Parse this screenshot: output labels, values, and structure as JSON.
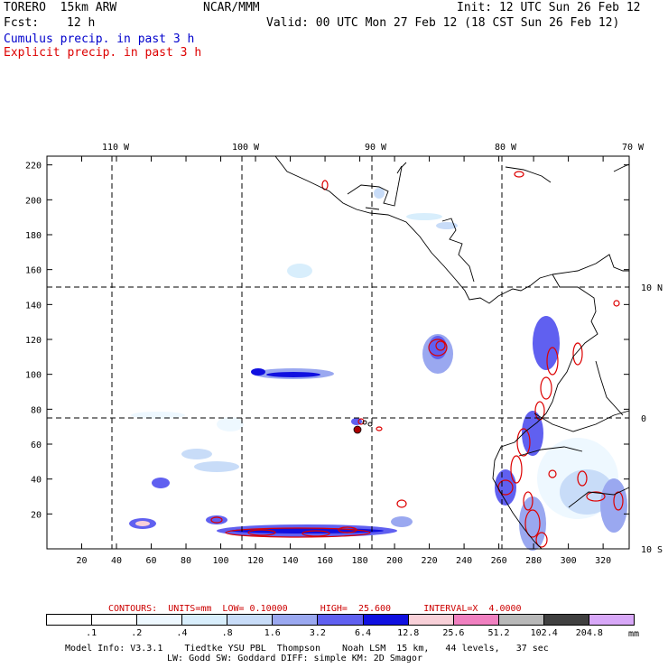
{
  "header": {
    "model": "TORERO  15km ARW",
    "org": "NCAR/MMM",
    "init": "Init: 12 UTC Sun 26 Feb 12",
    "fcst_label": "Fcst:",
    "fcst_value": "12 h",
    "valid": "Valid: 00 UTC Mon 27 Feb 12 (18 CST Sun 26 Feb 12)",
    "field1": "Cumulus precip. in past 3 h",
    "field2": "Explicit precip. in past 3 h",
    "field1_color": "#0000cc",
    "field2_color": "#dd0000"
  },
  "axes": {
    "x_ticks": [
      "20",
      "40",
      "60",
      "80",
      "100",
      "120",
      "140",
      "160",
      "180",
      "200",
      "220",
      "240",
      "260",
      "280",
      "300",
      "320"
    ],
    "y_ticks": [
      "20",
      "40",
      "60",
      "80",
      "100",
      "120",
      "140",
      "160",
      "180",
      "200",
      "220"
    ],
    "lon_labels": [
      "110 W",
      "100 W",
      "90 W",
      "80 W",
      "70 W"
    ],
    "lat_labels": [
      "10 N",
      "0",
      "10 S"
    ]
  },
  "contour_info": {
    "text": "CONTOURS:  UNITS=mm  LOW= 0.10000      HIGH=  25.600      INTERVAL=X  4.0000",
    "color": "#cc0000"
  },
  "colorbar": {
    "colors": [
      "#ffffff",
      "#ffffff",
      "#eef8ff",
      "#d8eefc",
      "#c8dcf8",
      "#9aa8f0",
      "#6060f0",
      "#1010e0",
      "#f8d0d8",
      "#f080c0",
      "#b8b8b8",
      "#404040",
      "#d8a8f8"
    ],
    "labels": [
      ".1",
      ".2",
      ".4",
      ".8",
      "1.6",
      "3.2",
      "6.4",
      "12.8",
      "25.6",
      "51.2",
      "102.4",
      "204.8"
    ],
    "units": "mm"
  },
  "footer": {
    "line1": "Model Info: V3.3.1    Tiedtke YSU PBL  Thompson    Noah LSM  15 km,   44 levels,   37 sec",
    "line2": "LW: Godd SW: Goddard DIFF: simple KM: 2D Smagor"
  }
}
